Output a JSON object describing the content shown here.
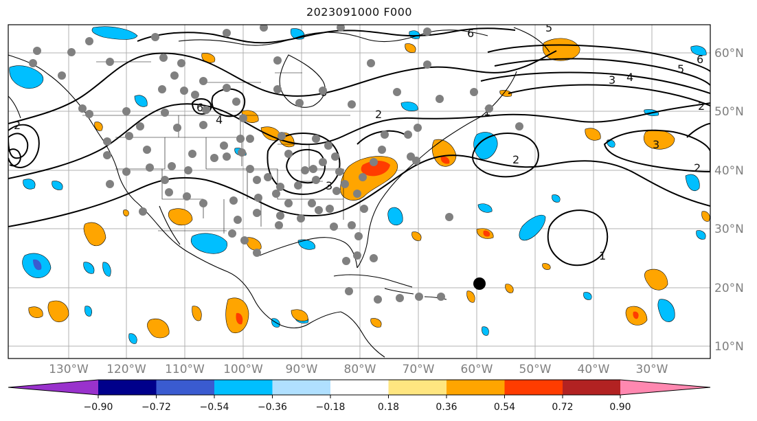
{
  "title": "2023091000 F000",
  "latitude_labels": [
    "60°N",
    "50°N",
    "40°N",
    "30°N",
    "20°N",
    "10°N"
  ],
  "longitude_labels": [
    "130°W",
    "120°W",
    "110°W",
    "100°W",
    "90°W",
    "80°W",
    "70°W",
    "60°W",
    "50°W",
    "40°W",
    "30°W"
  ],
  "contour_labels": [
    "6",
    "6",
    "5",
    "6",
    "3",
    "4",
    "5",
    "6",
    "2",
    "2",
    "1",
    "2",
    "2",
    "3",
    "3",
    "2",
    "1",
    "4"
  ],
  "colorbar": {
    "labels": [
      "−0.90",
      "−0.72",
      "−0.54",
      "−0.36",
      "−0.18",
      "0.18",
      "0.36",
      "0.54",
      "0.72",
      "0.90"
    ],
    "colors": [
      "#9932cc",
      "#00008b",
      "#3a5bd0",
      "#00bfff",
      "#b0e0ff",
      "#ffffff",
      "#ffe680",
      "#ffa500",
      "#ff3c00",
      "#b22222",
      "#ff88b0"
    ]
  },
  "colors": {
    "positive_light": "#ffa500",
    "positive_strong": "#ff3c00",
    "negative_light": "#00bfff",
    "negative_strong": "#3a5bd0",
    "station_marker": "#808080",
    "storm_marker": "#000000"
  }
}
